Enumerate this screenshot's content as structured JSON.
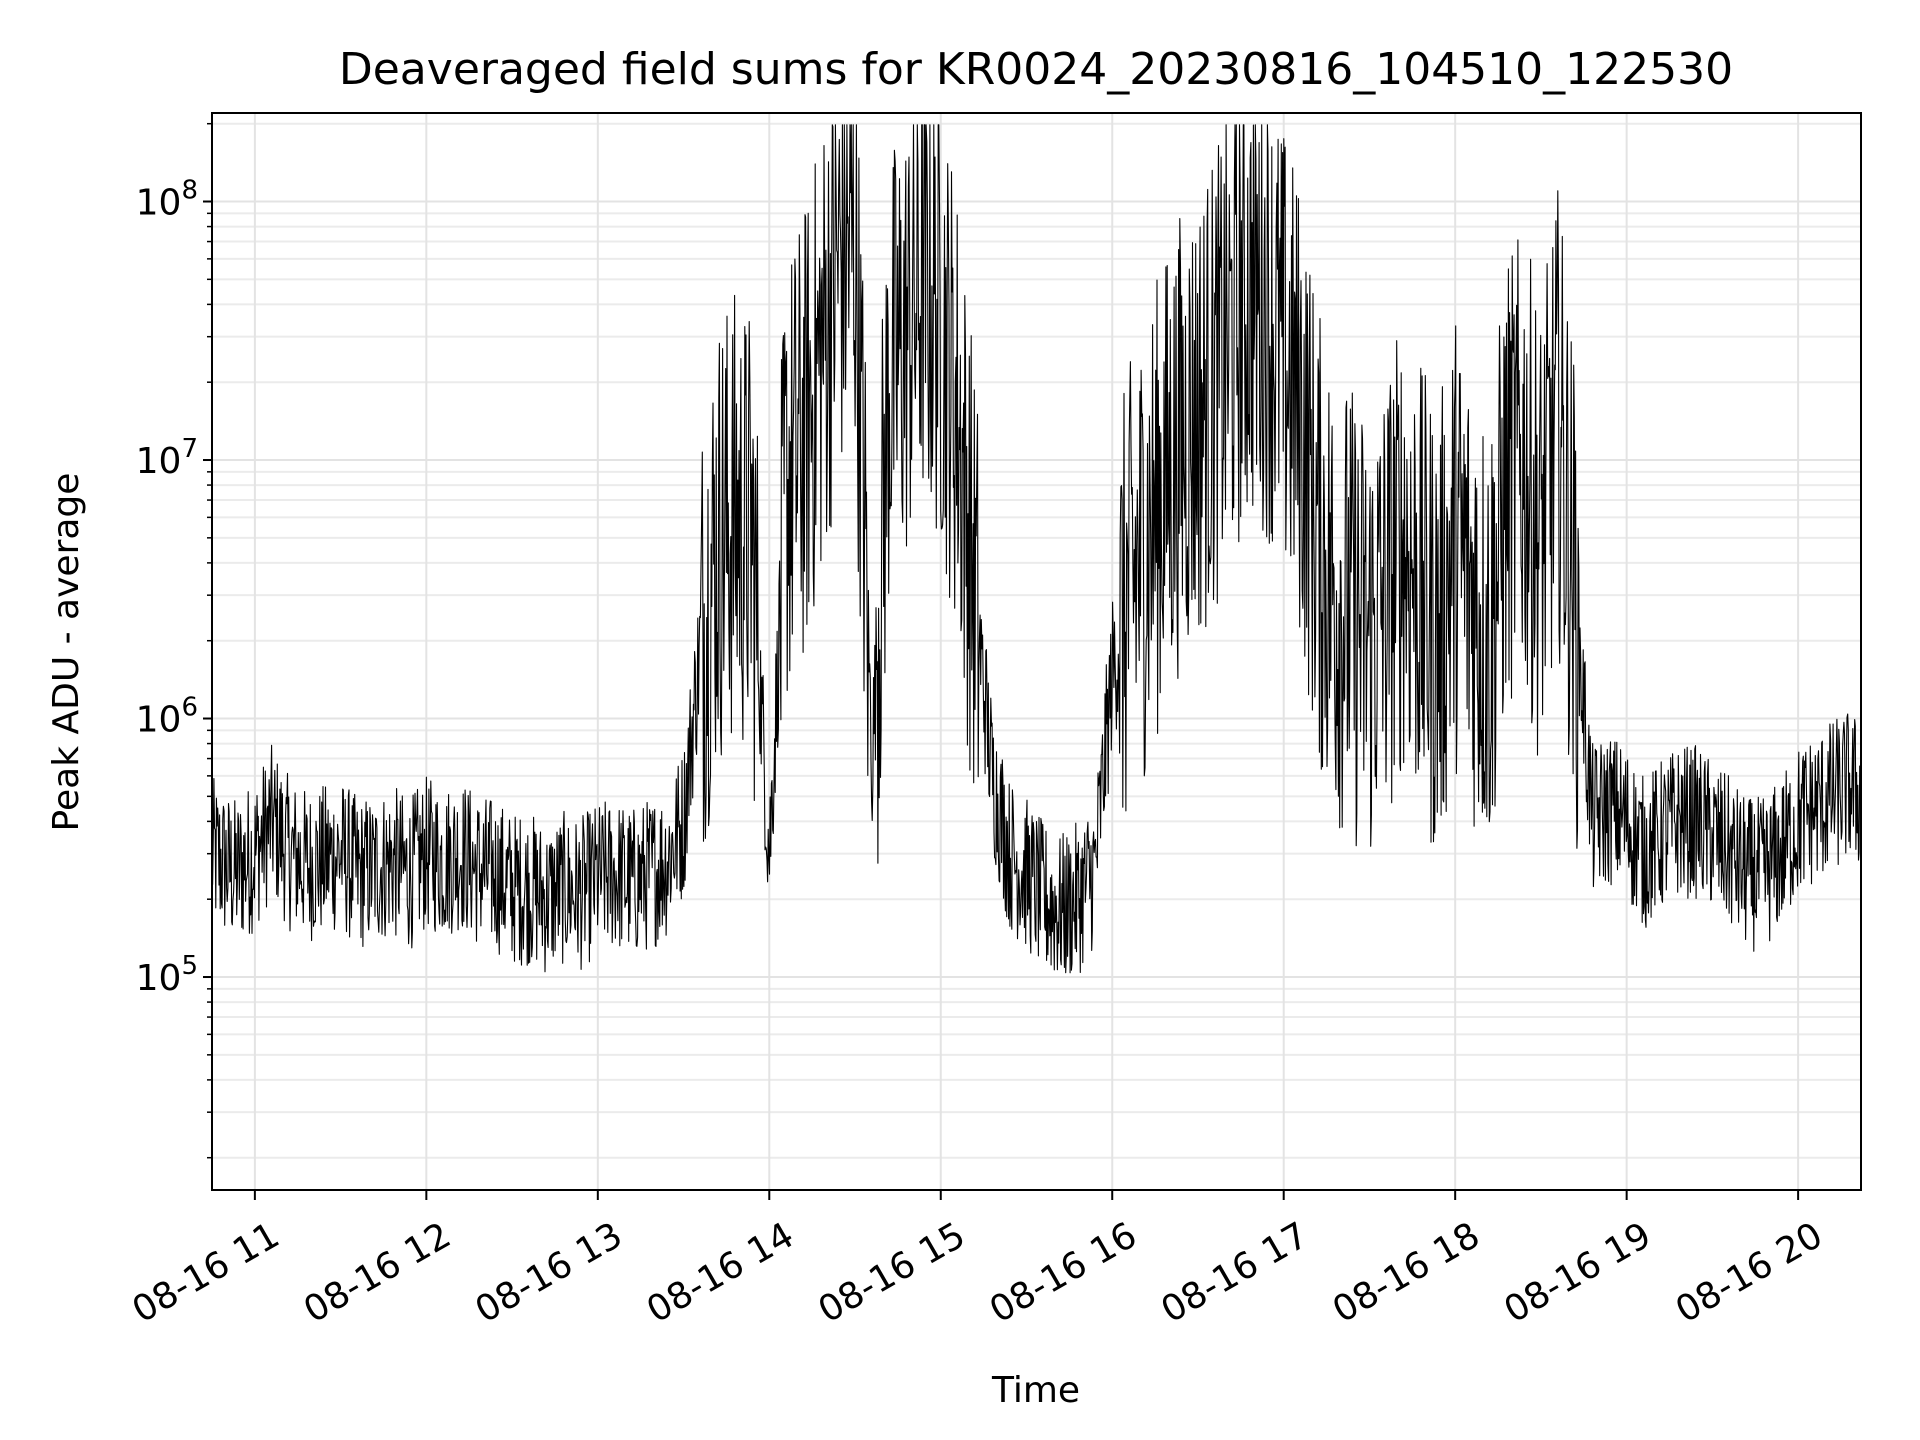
{
  "chart_data": {
    "type": "line",
    "title": "Deaveraged field sums for KR0024_20230816_104510_122530",
    "xlabel": "Time",
    "ylabel": "Peak ADU - average",
    "yscale": "log",
    "grid": true,
    "grid_minor": true,
    "line_color": "#000000",
    "xlim": [
      "2023-08-16 10:45",
      "2023-08-16 20:22"
    ],
    "ylim": [
      15000,
      220000000
    ],
    "x_ticks": [
      {
        "time": "2023-08-16 11:00",
        "label": "08-16 11"
      },
      {
        "time": "2023-08-16 12:00",
        "label": "08-16 12"
      },
      {
        "time": "2023-08-16 13:00",
        "label": "08-16 13"
      },
      {
        "time": "2023-08-16 14:00",
        "label": "08-16 14"
      },
      {
        "time": "2023-08-16 15:00",
        "label": "08-16 15"
      },
      {
        "time": "2023-08-16 16:00",
        "label": "08-16 16"
      },
      {
        "time": "2023-08-16 17:00",
        "label": "08-16 17"
      },
      {
        "time": "2023-08-16 18:00",
        "label": "08-16 18"
      },
      {
        "time": "2023-08-16 19:00",
        "label": "08-16 19"
      },
      {
        "time": "2023-08-16 20:00",
        "label": "08-16 20"
      }
    ],
    "y_ticks": [
      {
        "value": 100000,
        "base": "10",
        "exp": "5"
      },
      {
        "value": 1000000,
        "base": "10",
        "exp": "6"
      },
      {
        "value": 10000000,
        "base": "10",
        "exp": "7"
      },
      {
        "value": 100000000,
        "base": "10",
        "exp": "8"
      }
    ],
    "series": [
      {
        "x": [
          "2023-08-16 10:45",
          "2023-08-16 10:53",
          "2023-08-16 11:00",
          "2023-08-16 11:06",
          "2023-08-16 11:12",
          "2023-08-16 11:18",
          "2023-08-16 11:24",
          "2023-08-16 11:30",
          "2023-08-16 11:36",
          "2023-08-16 11:42",
          "2023-08-16 11:48",
          "2023-08-16 11:54",
          "2023-08-16 12:00",
          "2023-08-16 12:06",
          "2023-08-16 12:12",
          "2023-08-16 12:18",
          "2023-08-16 12:24",
          "2023-08-16 12:30",
          "2023-08-16 12:36",
          "2023-08-16 12:42",
          "2023-08-16 12:48",
          "2023-08-16 12:54",
          "2023-08-16 13:00",
          "2023-08-16 13:06",
          "2023-08-16 13:12",
          "2023-08-16 13:18",
          "2023-08-16 13:24",
          "2023-08-16 13:30",
          "2023-08-16 13:36",
          "2023-08-16 13:42",
          "2023-08-16 13:48",
          "2023-08-16 13:54",
          "2023-08-16 14:00",
          "2023-08-16 14:06",
          "2023-08-16 14:12",
          "2023-08-16 14:18",
          "2023-08-16 14:24",
          "2023-08-16 14:30",
          "2023-08-16 14:36",
          "2023-08-16 14:42",
          "2023-08-16 14:48",
          "2023-08-16 14:54",
          "2023-08-16 15:00",
          "2023-08-16 15:06",
          "2023-08-16 15:12",
          "2023-08-16 15:18",
          "2023-08-16 15:24",
          "2023-08-16 15:30",
          "2023-08-16 15:36",
          "2023-08-16 15:42",
          "2023-08-16 15:48",
          "2023-08-16 15:54",
          "2023-08-16 16:00",
          "2023-08-16 16:06",
          "2023-08-16 16:12",
          "2023-08-16 16:18",
          "2023-08-16 16:24",
          "2023-08-16 16:30",
          "2023-08-16 16:36",
          "2023-08-16 16:42",
          "2023-08-16 16:48",
          "2023-08-16 16:54",
          "2023-08-16 17:00",
          "2023-08-16 17:06",
          "2023-08-16 17:12",
          "2023-08-16 17:18",
          "2023-08-16 17:24",
          "2023-08-16 17:30",
          "2023-08-16 17:36",
          "2023-08-16 17:42",
          "2023-08-16 17:48",
          "2023-08-16 17:54",
          "2023-08-16 18:00",
          "2023-08-16 18:06",
          "2023-08-16 18:12",
          "2023-08-16 18:18",
          "2023-08-16 18:24",
          "2023-08-16 18:30",
          "2023-08-16 18:36",
          "2023-08-16 18:42",
          "2023-08-16 18:48",
          "2023-08-16 18:54",
          "2023-08-16 19:00",
          "2023-08-16 19:06",
          "2023-08-16 19:12",
          "2023-08-16 19:18",
          "2023-08-16 19:24",
          "2023-08-16 19:30",
          "2023-08-16 19:36",
          "2023-08-16 19:42",
          "2023-08-16 19:48",
          "2023-08-16 19:54",
          "2023-08-16 20:00",
          "2023-08-16 20:06",
          "2023-08-16 20:12",
          "2023-08-16 20:18",
          "2023-08-16 20:22"
        ],
        "y": [
          300000,
          250000,
          300000,
          400000,
          300000,
          270000,
          280000,
          300000,
          250000,
          260000,
          280000,
          250000,
          300000,
          280000,
          300000,
          260000,
          250000,
          220000,
          220000,
          200000,
          220000,
          210000,
          240000,
          250000,
          230000,
          250000,
          280000,
          400000,
          2000000,
          5000000,
          6000000,
          5000000,
          300000,
          8000000,
          12000000,
          25000000,
          60000000,
          70000000,
          700000,
          20000000,
          30000000,
          50000000,
          35000000,
          15000000,
          3000000,
          600000,
          300000,
          250000,
          200000,
          180000,
          200000,
          260000,
          1500000,
          3000000,
          5000000,
          8000000,
          12000000,
          15000000,
          20000000,
          30000000,
          45000000,
          40000000,
          25000000,
          15000000,
          5000000,
          3000000,
          2500000,
          2000000,
          3000000,
          5000000,
          3000000,
          2000000,
          5000000,
          3000000,
          2000000,
          8000000,
          10000000,
          5000000,
          15000000,
          3000000,
          400000,
          450000,
          400000,
          300000,
          350000,
          400000,
          400000,
          350000,
          300000,
          250000,
          250000,
          300000,
          400000,
          450000,
          500000,
          550000,
          500000
        ]
      }
    ]
  }
}
